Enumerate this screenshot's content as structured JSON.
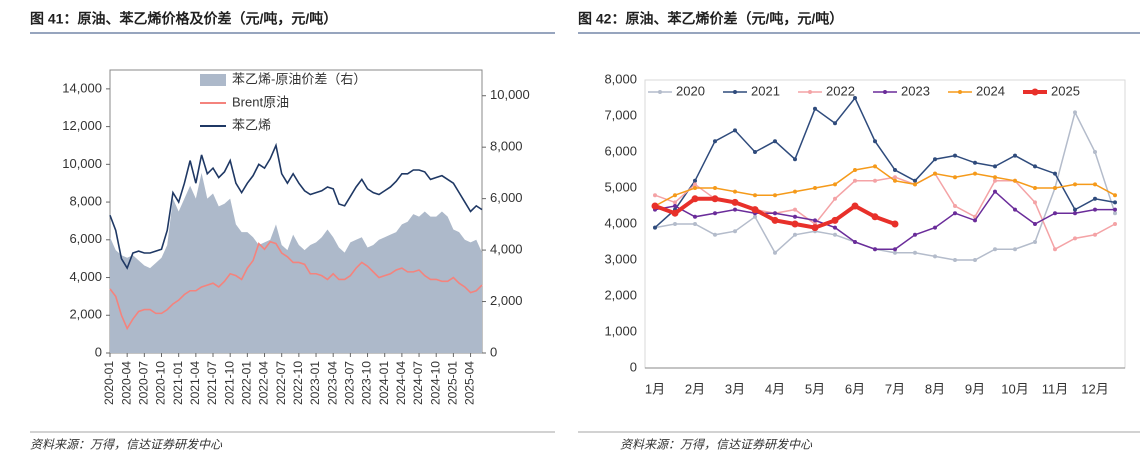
{
  "chart_data": [
    {
      "type": "line",
      "title": "图 41：原油、苯乙烯价格及价差（元/吨，元/吨）",
      "source": "资料来源：万得，信达证券研发中心",
      "categories": [
        "2020-01",
        null,
        null,
        "2020-04",
        null,
        null,
        "2020-07",
        null,
        null,
        "2020-10",
        null,
        null,
        "2021-01",
        null,
        null,
        "2021-04",
        null,
        null,
        "2021-07",
        null,
        null,
        "2021-10",
        null,
        null,
        "2022-01",
        null,
        null,
        "2022-04",
        null,
        null,
        "2022-07",
        null,
        null,
        "2022-10",
        null,
        null,
        "2023-01",
        null,
        null,
        "2023-04",
        null,
        null,
        "2023-07",
        null,
        null,
        "2023-10",
        null,
        null,
        "2024-01",
        null,
        null,
        "2024-04",
        null,
        null,
        "2024-07",
        null,
        null,
        "2024-10",
        null,
        null,
        "2025-01",
        null,
        null,
        "2025-04",
        null,
        null
      ],
      "ylim": [
        0,
        15000
      ],
      "yticks": [
        0,
        {
          "value": 2000,
          "label": "2,000"
        },
        {
          "value": 4000,
          "label": "4,000"
        },
        {
          "value": 6000,
          "label": "6,000"
        },
        {
          "value": 8000,
          "label": "8,000"
        },
        {
          "value": 10000,
          "label": "10,000"
        },
        {
          "value": 12000,
          "label": "12,000"
        },
        {
          "value": 14000,
          "label": "14,000"
        }
      ],
      "y2lim": [
        0,
        11000
      ],
      "y2ticks": [
        0,
        {
          "value": 2000,
          "label": "2,000"
        },
        {
          "value": 4000,
          "label": "4,000"
        },
        {
          "value": 6000,
          "label": "6,000"
        },
        {
          "value": 8000,
          "label": "8,000"
        },
        {
          "value": 10000,
          "label": "10,000"
        }
      ],
      "series": [
        {
          "name": "苯乙烯-原油价差（右）",
          "kind": "area",
          "axis": "y2",
          "color": "#adb9ca",
          "values": [
            4500,
            4000,
            3800,
            3700,
            3800,
            3600,
            3400,
            3300,
            3500,
            3700,
            4200,
            6000,
            5500,
            6000,
            6500,
            6000,
            7000,
            6000,
            6200,
            5700,
            5800,
            6000,
            5000,
            4700,
            4700,
            4500,
            4200,
            4300,
            4400,
            5000,
            4200,
            4000,
            4600,
            4200,
            4000,
            4200,
            4300,
            4500,
            4800,
            4500,
            4100,
            3900,
            4300,
            4400,
            4500,
            4100,
            4200,
            4400,
            4500,
            4600,
            4700,
            5000,
            5100,
            5400,
            5300,
            5500,
            5300,
            5300,
            5500,
            5300,
            4800,
            4700,
            4400,
            4300,
            4400,
            3900
          ]
        },
        {
          "name": "Brent原油",
          "kind": "line",
          "color": "#f4837d",
          "values": [
            3400,
            3000,
            2000,
            1300,
            1800,
            2200,
            2300,
            2300,
            2100,
            2100,
            2300,
            2600,
            2800,
            3100,
            3300,
            3300,
            3500,
            3600,
            3700,
            3500,
            3800,
            4200,
            4100,
            3900,
            4500,
            4900,
            5800,
            5500,
            5900,
            5800,
            5300,
            5100,
            4800,
            4800,
            4700,
            4200,
            4200,
            4100,
            3900,
            4200,
            3900,
            3900,
            4100,
            4500,
            4800,
            4600,
            4300,
            4000,
            4100,
            4200,
            4400,
            4500,
            4300,
            4300,
            4400,
            4100,
            3900,
            3900,
            3800,
            3800,
            4000,
            3700,
            3500,
            3200,
            3300,
            3600
          ]
        },
        {
          "name": "苯乙烯",
          "kind": "line",
          "color": "#1f3864",
          "values": [
            7300,
            6500,
            5000,
            4500,
            5300,
            5400,
            5300,
            5300,
            5400,
            5500,
            6500,
            8500,
            8000,
            9000,
            10200,
            9000,
            10500,
            9500,
            9800,
            9300,
            9600,
            10200,
            9000,
            8500,
            9000,
            9400,
            10000,
            9800,
            10300,
            11000,
            9500,
            9000,
            9500,
            9000,
            8600,
            8400,
            8500,
            8600,
            8800,
            8700,
            7900,
            7800,
            8300,
            8800,
            9200,
            8700,
            8500,
            8400,
            8600,
            8800,
            9100,
            9500,
            9500,
            9700,
            9700,
            9600,
            9200,
            9300,
            9400,
            9200,
            9000,
            8500,
            8000,
            7500,
            7800,
            7600
          ]
        }
      ]
    },
    {
      "type": "line",
      "title": "图 42：原油、苯乙烯价差（元/吨，元/吨）",
      "source": "资料来源：万得，信达证券研发中心",
      "categories": [
        "1月",
        null,
        "2月",
        null,
        "3月",
        null,
        "4月",
        null,
        "5月",
        null,
        "6月",
        null,
        "7月",
        null,
        "8月",
        null,
        "9月",
        null,
        "10月",
        null,
        "11月",
        null,
        "12月",
        null
      ],
      "ylim": [
        0,
        8000
      ],
      "yticks": [
        0,
        {
          "value": 1000,
          "label": "1,000"
        },
        {
          "value": 2000,
          "label": "2,000"
        },
        {
          "value": 3000,
          "label": "3,000"
        },
        {
          "value": 4000,
          "label": "4,000"
        },
        {
          "value": 5000,
          "label": "5,000"
        },
        {
          "value": 6000,
          "label": "6,000"
        },
        {
          "value": 7000,
          "label": "7,000"
        },
        {
          "value": 8000,
          "label": "8,000"
        }
      ],
      "series": [
        {
          "name": "2020",
          "color": "#b4bccb",
          "linewidth": 1.5,
          "values": [
            3900,
            4000,
            4000,
            3700,
            3800,
            4200,
            3200,
            3700,
            3800,
            3700,
            3500,
            3300,
            3200,
            3200,
            3100,
            3000,
            3000,
            3300,
            3300,
            3500,
            5000,
            7100,
            6000,
            4300
          ]
        },
        {
          "name": "2021",
          "color": "#2f4b7c",
          "linewidth": 1.5,
          "values": [
            3900,
            4400,
            5200,
            6300,
            6600,
            6000,
            6300,
            5800,
            7200,
            6800,
            7500,
            6300,
            5500,
            5200,
            5800,
            5900,
            5700,
            5600,
            5900,
            5600,
            5400,
            4400,
            4700,
            4600
          ]
        },
        {
          "name": "2022",
          "color": "#f4a3a6",
          "linewidth": 1.5,
          "values": [
            4800,
            4600,
            5100,
            4700,
            4600,
            4400,
            4300,
            4400,
            4000,
            4700,
            5200,
            5200,
            5300,
            5100,
            5400,
            4500,
            4200,
            5200,
            5200,
            4600,
            3300,
            3600,
            3700,
            4000
          ]
        },
        {
          "name": "2023",
          "color": "#6a2c9a",
          "linewidth": 1.5,
          "values": [
            4400,
            4500,
            4200,
            4300,
            4400,
            4300,
            4300,
            4200,
            4100,
            3900,
            3500,
            3300,
            3300,
            3700,
            3900,
            4300,
            4100,
            4900,
            4400,
            4000,
            4300,
            4300,
            4400,
            4400
          ]
        },
        {
          "name": "2024",
          "color": "#f59a1a",
          "linewidth": 1.5,
          "values": [
            4500,
            4800,
            5000,
            5000,
            4900,
            4800,
            4800,
            4900,
            5000,
            5100,
            5500,
            5600,
            5200,
            5100,
            5400,
            5300,
            5400,
            5300,
            5200,
            5000,
            5000,
            5100,
            5100,
            4800
          ]
        },
        {
          "name": "2025",
          "color": "#e8302a",
          "linewidth": 4,
          "values": [
            4500,
            4300,
            4700,
            4700,
            4600,
            4400,
            4100,
            4000,
            3900,
            4100,
            4500,
            4200,
            4000,
            null,
            null,
            null,
            null,
            null,
            null,
            null,
            null,
            null,
            null,
            null
          ]
        }
      ]
    }
  ]
}
